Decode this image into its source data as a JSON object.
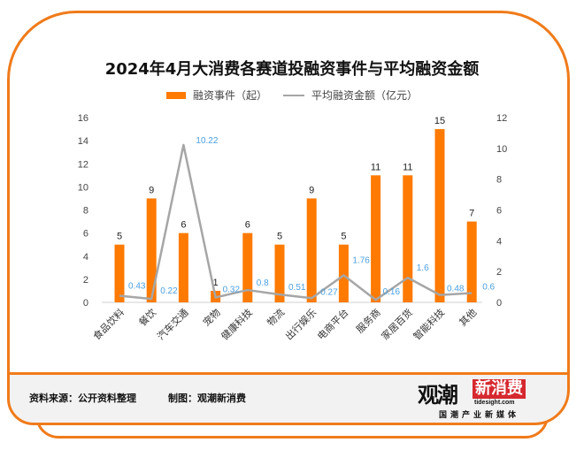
{
  "header": {
    "title": "2024年4月大消费各赛道投融资事件与平均融资金额",
    "legend": [
      {
        "label": "融资事件（起）",
        "type": "bar",
        "color": "#ff7a00"
      },
      {
        "label": "平均融资金额（亿元）",
        "type": "line",
        "color": "#a6a6a6"
      }
    ]
  },
  "footer": {
    "source": "资料来源：公开资料整理",
    "maker": "制图：观潮新消费",
    "logo_main": "观潮",
    "logo_accent": "新消费",
    "logo_url": "tidesight.com",
    "logo_tagline": "国潮产业新媒体"
  },
  "colors": {
    "frame": "#f07b1a",
    "bar": "#ff7a00",
    "line": "#a6a6a6",
    "line_label": "#4a9fe0"
  },
  "chart_data": {
    "type": "bar",
    "title": "2024年4月大消费各赛道投融资事件与平均融资金额",
    "categories": [
      "食品饮料",
      "餐饮",
      "汽车交通",
      "宠物",
      "健康科技",
      "物流",
      "出行娱乐",
      "电商平台",
      "服务商",
      "家居百货",
      "智能科技",
      "其他"
    ],
    "series": [
      {
        "name": "融资事件（起）",
        "type": "bar",
        "axis": "left",
        "values": [
          5,
          9,
          6,
          1,
          6,
          5,
          9,
          5,
          11,
          11,
          15,
          7
        ]
      },
      {
        "name": "平均融资金额（亿元）",
        "type": "line",
        "axis": "right",
        "values": [
          0.43,
          0.22,
          10.22,
          0.32,
          0.8,
          0.51,
          0.27,
          1.76,
          0.16,
          1.6,
          0.48,
          0.6
        ]
      }
    ],
    "left_axis": {
      "ylim": [
        0,
        16
      ],
      "ticks": [
        0,
        2,
        4,
        6,
        8,
        10,
        12,
        14,
        16
      ]
    },
    "right_axis": {
      "ylim": [
        0,
        12
      ],
      "ticks": [
        0,
        2,
        4,
        6,
        8,
        10,
        12
      ]
    },
    "xlabel": "",
    "ylabel": "",
    "grid": false,
    "legend_position": "top"
  }
}
